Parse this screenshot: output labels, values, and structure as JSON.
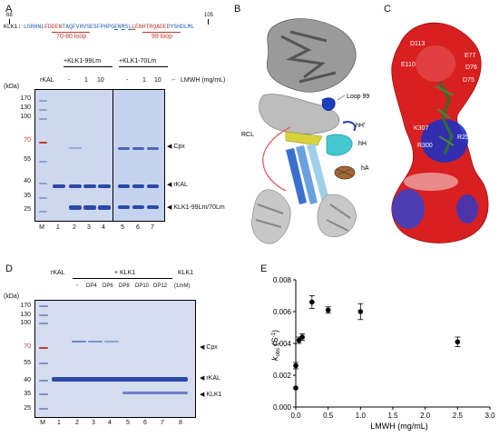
{
  "panels": {
    "A": "A",
    "B": "B",
    "C": "C",
    "D": "D",
    "E": "E"
  },
  "panelA": {
    "seq_start": "68",
    "seq_end": "105",
    "seq_prefix": "KLK1:",
    "seq_text": "LGRHNLFDDENTAQFVHVSESFPHPGFNMSLLENHTRQADEDYSHDLML",
    "loop1_label": "70-80 loop",
    "loop2_label": "99 loop",
    "group1_label": "+KLK1-99Lm",
    "group2_label": "+KLK1-70Lm",
    "rkal_label": "rKAL",
    "lmwh_values": [
      "-",
      "1",
      "10",
      "-",
      "1",
      "10"
    ],
    "lmwh_label": "LMWH (mg/mL)",
    "kda": "(kDa)",
    "mw_markers": [
      "170",
      "130",
      "100",
      "70",
      "55",
      "40",
      "35",
      "25"
    ],
    "lanes": [
      "M",
      "1",
      "2",
      "3",
      "4",
      "5",
      "6",
      "7"
    ],
    "band_labels": [
      "Cpx",
      "rKAL",
      "KLK1-99Lm/70Lm"
    ]
  },
  "panelB": {
    "labels": [
      "Loop 99",
      "hH'",
      "RCL",
      "hH",
      "hA"
    ]
  },
  "panelC": {
    "labels": [
      "D113",
      "E77",
      "E110",
      "D76",
      "D75",
      "R304",
      "K307",
      "R259",
      "R300"
    ]
  },
  "panelD": {
    "rkal_label": "rKAL",
    "klk1_group": "+ KLK1",
    "klk1_right": "KLK1",
    "conditions": [
      "-",
      "DP4",
      "DP6",
      "DP8",
      "DP10",
      "DP12",
      "(1mM)"
    ],
    "kda": "(kDa)",
    "mw_markers": [
      "170",
      "130",
      "100",
      "70",
      "55",
      "40",
      "35",
      "25"
    ],
    "lanes": [
      "M",
      "1",
      "2",
      "3",
      "4",
      "5",
      "6",
      "7",
      "8"
    ],
    "band_labels": [
      "Cpx",
      "rKAL",
      "KLK1"
    ]
  },
  "chart_data": {
    "type": "scatter",
    "title": "",
    "xlabel": "LMWH (mg/mL)",
    "ylabel": "k_obs (S^-1)",
    "ylabel_main": "k",
    "ylabel_sub": "obs",
    "ylabel_rest": " (S",
    "ylabel_sup": "-1",
    "ylabel_close": ")",
    "xlim": [
      0,
      3.0
    ],
    "ylim": [
      0,
      0.008
    ],
    "xticks": [
      "0.0",
      "0.5",
      "1.0",
      "1.5",
      "2.0",
      "2.5",
      "3.0"
    ],
    "yticks": [
      "0.000",
      "0.002",
      "0.004",
      "0.006",
      "0.008"
    ],
    "x": [
      0.0,
      0.0,
      0.05,
      0.1,
      0.25,
      0.5,
      1.0,
      2.5
    ],
    "y": [
      0.0012,
      0.0026,
      0.0042,
      0.0044,
      0.0066,
      0.0061,
      0.006,
      0.0041
    ],
    "err": [
      0.0,
      0.0002,
      0.0002,
      0.0002,
      0.0004,
      0.0002,
      0.0005,
      0.0003
    ]
  }
}
